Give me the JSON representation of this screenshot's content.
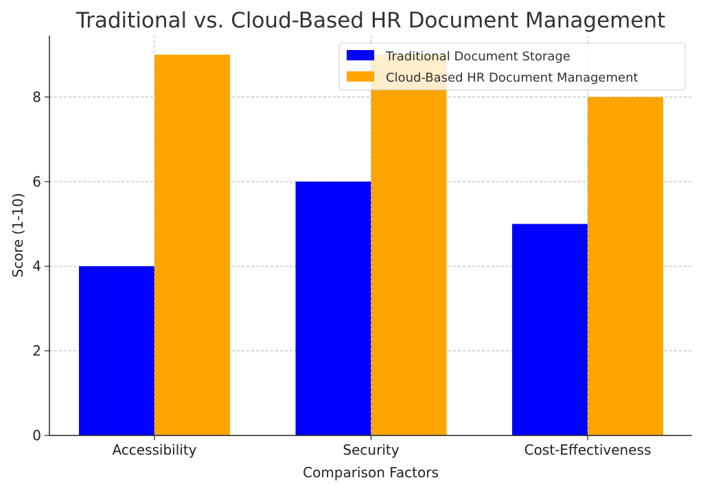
{
  "chart_data": {
    "type": "bar",
    "title": "Traditional vs. Cloud-Based HR Document Management",
    "xlabel": "Comparison Factors",
    "ylabel": "Score (1-10)",
    "categories": [
      "Accessibility",
      "Security",
      "Cost-Effectiveness"
    ],
    "series": [
      {
        "name": "Traditional Document Storage",
        "color": "#0000ff",
        "values": [
          4,
          6,
          5
        ]
      },
      {
        "name": "Cloud-Based HR Document Management",
        "color": "#ffa500",
        "values": [
          9,
          9,
          8
        ]
      }
    ],
    "ylim": [
      0,
      9.45
    ],
    "yticks": [
      0,
      2,
      4,
      6,
      8
    ],
    "grid": true,
    "legend_position": "top-right"
  }
}
